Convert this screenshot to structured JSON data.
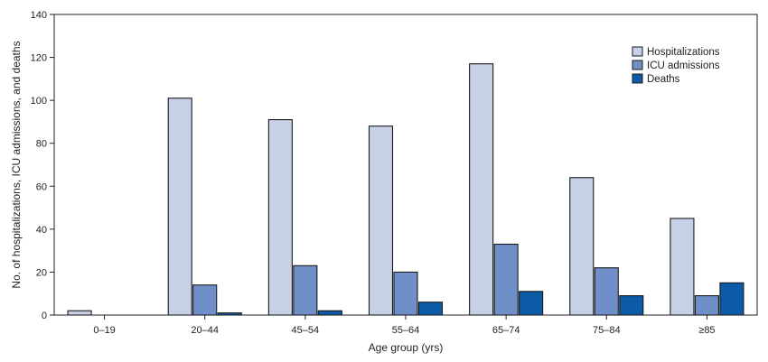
{
  "chart_data": {
    "type": "bar",
    "title": "",
    "xlabel": "Age group (yrs)",
    "ylabel": "No. of hospitalizations, ICU admissions, and deaths",
    "categories": [
      "0–19",
      "20–44",
      "45–54",
      "55–64",
      "65–74",
      "75–84",
      "≥85"
    ],
    "series": [
      {
        "name": "Hospitalizations",
        "color": "#c6d1e8",
        "values": [
          2,
          101,
          91,
          88,
          117,
          64,
          45
        ]
      },
      {
        "name": "ICU admissions",
        "color": "#6f8fc9",
        "values": [
          0,
          14,
          23,
          20,
          33,
          22,
          9
        ]
      },
      {
        "name": "Deaths",
        "color": "#0d5aa7",
        "values": [
          0,
          1,
          2,
          6,
          11,
          9,
          15
        ]
      }
    ],
    "ylim": [
      0,
      140
    ],
    "yticks": [
      0,
      20,
      40,
      60,
      80,
      100,
      120,
      140
    ],
    "grid": false,
    "legend_position": "top-right"
  }
}
